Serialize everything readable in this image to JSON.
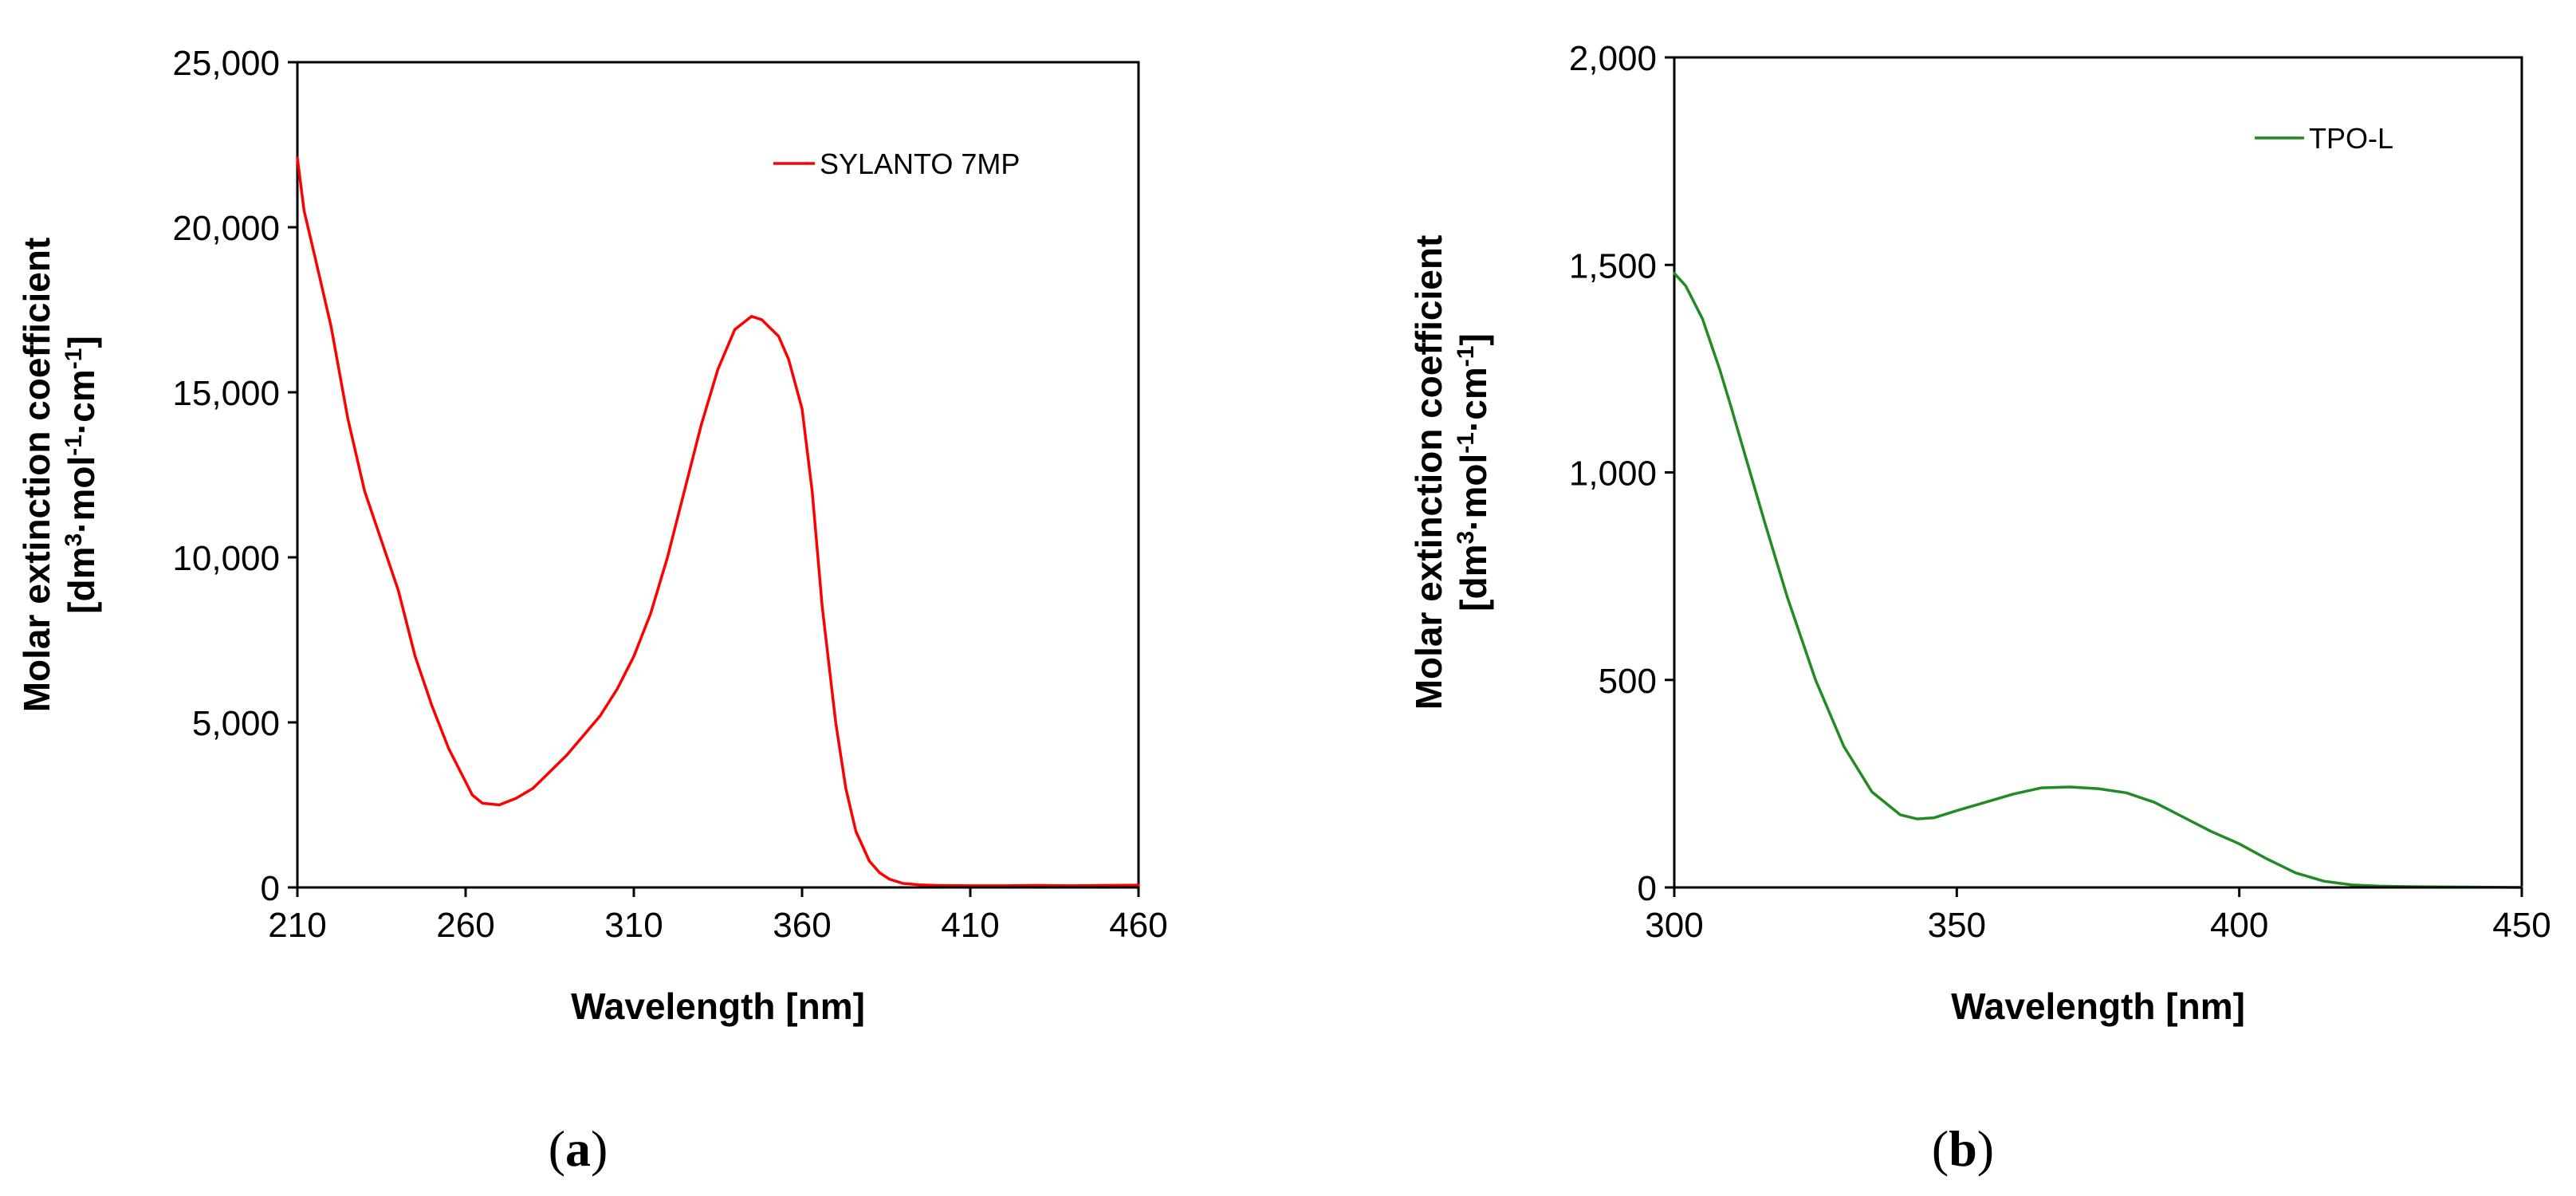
{
  "chart_data": [
    {
      "type": "line",
      "panel_caption": {
        "open": "(",
        "letter": "a",
        "close": ")"
      },
      "xlabel": "Wavelength [nm]",
      "ylabel_line1": "Molar extinction coefficient",
      "ylabel_line2_parts": [
        "[dm",
        "3",
        "·mol",
        "-1",
        "·cm",
        "-1",
        "]"
      ],
      "xlim": [
        210,
        460
      ],
      "ylim": [
        0,
        25000
      ],
      "xticks": [
        210,
        260,
        310,
        360,
        410,
        460
      ],
      "xtick_labels": [
        "210",
        "260",
        "310",
        "360",
        "410",
        "460"
      ],
      "yticks": [
        0,
        5000,
        10000,
        15000,
        20000,
        25000
      ],
      "ytick_labels": [
        "0",
        "5,000",
        "10,000",
        "15,000",
        "20,000",
        "25,000"
      ],
      "legend_position": "top-right",
      "series": [
        {
          "name": "SYLANTO 7MP",
          "color": "#ff0000",
          "x": [
            210,
            212,
            215,
            220,
            225,
            230,
            235,
            240,
            245,
            250,
            255,
            260,
            262,
            265,
            270,
            275,
            280,
            285,
            290,
            295,
            300,
            305,
            310,
            315,
            320,
            325,
            330,
            335,
            340,
            345,
            348,
            350,
            353,
            356,
            360,
            363,
            366,
            370,
            373,
            376,
            380,
            383,
            386,
            390,
            395,
            400,
            410,
            420,
            430,
            440,
            450,
            460
          ],
          "y": [
            22100,
            20500,
            19200,
            17000,
            14200,
            12000,
            10500,
            9000,
            7000,
            5500,
            4200,
            3200,
            2800,
            2550,
            2500,
            2700,
            3000,
            3500,
            4000,
            4600,
            5200,
            6000,
            7000,
            8300,
            10000,
            12000,
            14000,
            15700,
            16900,
            17300,
            17200,
            17000,
            16700,
            16000,
            14500,
            12000,
            8500,
            5000,
            3000,
            1700,
            800,
            450,
            250,
            120,
            80,
            60,
            50,
            50,
            60,
            50,
            60,
            70
          ]
        }
      ]
    },
    {
      "type": "line",
      "panel_caption": {
        "open": "(",
        "letter": "b",
        "close": ")"
      },
      "xlabel": "Wavelength [nm]",
      "ylabel_line1": "Molar extinction coefficient",
      "ylabel_line2_parts": [
        "[dm",
        "3",
        "·mol",
        "-1",
        "·cm",
        "-1",
        "]"
      ],
      "xlim": [
        300,
        450
      ],
      "ylim": [
        0,
        2000
      ],
      "xticks": [
        300,
        350,
        400,
        450
      ],
      "xtick_labels": [
        "300",
        "350",
        "400",
        "450"
      ],
      "yticks": [
        0,
        500,
        1000,
        1500,
        2000
      ],
      "ytick_labels": [
        "0",
        "500",
        "1,000",
        "1,500",
        "2,000"
      ],
      "legend_position": "top-right",
      "series": [
        {
          "name": "TPO-L",
          "color": "#228b22",
          "x": [
            300,
            302,
            305,
            308,
            310,
            313,
            316,
            320,
            325,
            330,
            335,
            340,
            343,
            346,
            350,
            355,
            360,
            365,
            370,
            375,
            380,
            385,
            390,
            395,
            400,
            405,
            410,
            415,
            420,
            425,
            430,
            440,
            450
          ],
          "y": [
            1480,
            1450,
            1370,
            1250,
            1160,
            1020,
            880,
            700,
            500,
            340,
            230,
            175,
            165,
            168,
            185,
            205,
            225,
            240,
            242,
            238,
            228,
            205,
            170,
            135,
            105,
            68,
            35,
            15,
            6,
            3,
            2,
            1,
            0
          ]
        }
      ]
    }
  ]
}
